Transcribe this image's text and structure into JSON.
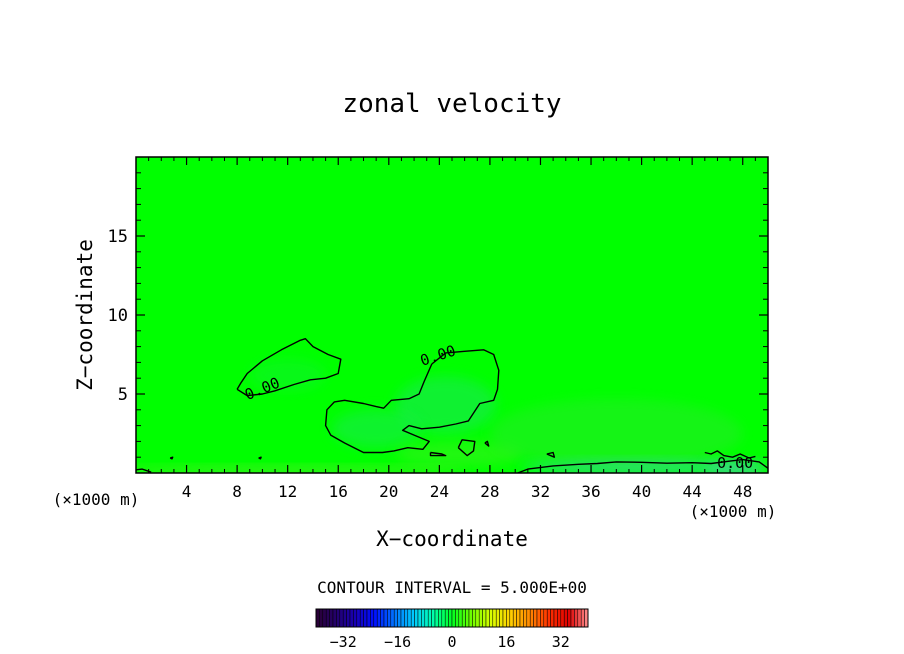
{
  "chart_data": {
    "type": "heatmap",
    "title": "zonal velocity",
    "xlabel": "X−coordinate",
    "ylabel": "Z−coordinate",
    "x_unit_left": "(×1000 m)",
    "x_unit_right": "(×1000 m)",
    "xlim": [
      0,
      50
    ],
    "ylim": [
      0,
      20
    ],
    "x_ticks": [
      {
        "value": 4,
        "label": "4"
      },
      {
        "value": 8,
        "label": "8"
      },
      {
        "value": 12,
        "label": "12"
      },
      {
        "value": 16,
        "label": "16"
      },
      {
        "value": 20,
        "label": "20"
      },
      {
        "value": 24,
        "label": "24"
      },
      {
        "value": 28,
        "label": "28"
      },
      {
        "value": 32,
        "label": "32"
      },
      {
        "value": 36,
        "label": "36"
      },
      {
        "value": 40,
        "label": "40"
      },
      {
        "value": 44,
        "label": "44"
      },
      {
        "value": 48,
        "label": "48"
      }
    ],
    "y_ticks": [
      {
        "value": 5,
        "label": "5"
      },
      {
        "value": 10,
        "label": "10"
      },
      {
        "value": 15,
        "label": "15"
      }
    ],
    "background_color": "#00ff00",
    "contour_interval_text": "CONTOUR INTERVAL = 5.000E+00",
    "contour_label": "0.00",
    "contour_labels": [
      {
        "x": 10.0,
        "z": 5.3,
        "text": "0.00",
        "angle": -22
      },
      {
        "x": 23.9,
        "z": 7.4,
        "text": "0.00",
        "angle": -18
      },
      {
        "x": 47.4,
        "z": 0.6,
        "text": "0.00",
        "angle": 0
      }
    ],
    "zero_contours": [
      [
        [
          8,
          5.3
        ],
        [
          8.3,
          5.7
        ],
        [
          8.8,
          6.3
        ],
        [
          10,
          7.1
        ],
        [
          11.5,
          7.8
        ],
        [
          13,
          8.4
        ],
        [
          13.4,
          8.5
        ],
        [
          14,
          8.0
        ],
        [
          15.2,
          7.5
        ],
        [
          16.2,
          7.2
        ],
        [
          16,
          6.3
        ],
        [
          15,
          6.0
        ],
        [
          13.8,
          5.9
        ],
        [
          12.5,
          5.6
        ],
        [
          11,
          5.2
        ],
        [
          10,
          5.0
        ],
        [
          8.8,
          4.9
        ],
        [
          8,
          5.3
        ]
      ],
      [
        [
          23.4,
          6.9
        ],
        [
          24.5,
          7.6
        ],
        [
          26,
          7.7
        ],
        [
          27.5,
          7.8
        ],
        [
          28.3,
          7.5
        ],
        [
          28.7,
          6.5
        ],
        [
          28.6,
          5.3
        ],
        [
          28.3,
          4.6
        ],
        [
          27.2,
          4.4
        ],
        [
          26.3,
          3.3
        ],
        [
          25.3,
          3.1
        ],
        [
          24,
          2.9
        ],
        [
          22.6,
          2.8
        ],
        [
          21.6,
          3.0
        ],
        [
          21.1,
          2.7
        ],
        [
          22,
          2.4
        ],
        [
          23.2,
          2.0
        ],
        [
          22.7,
          1.5
        ],
        [
          21.5,
          1.6
        ],
        [
          20.4,
          1.4
        ],
        [
          19.5,
          1.3
        ],
        [
          18,
          1.3
        ],
        [
          16.5,
          1.9
        ],
        [
          15.4,
          2.4
        ],
        [
          15,
          3.0
        ],
        [
          15.1,
          4.0
        ],
        [
          15.7,
          4.5
        ],
        [
          16.5,
          4.6
        ],
        [
          18,
          4.4
        ],
        [
          19,
          4.2
        ],
        [
          19.6,
          4.1
        ],
        [
          20.2,
          4.6
        ],
        [
          21.6,
          4.7
        ],
        [
          22.4,
          5.0
        ],
        [
          22.8,
          5.8
        ],
        [
          23.4,
          6.9
        ]
      ],
      [
        [
          25.5,
          1.6
        ],
        [
          25.8,
          2.1
        ],
        [
          26.8,
          2.0
        ],
        [
          26.7,
          1.4
        ],
        [
          26.2,
          1.1
        ],
        [
          25.5,
          1.6
        ]
      ],
      [
        [
          23.3,
          1.3
        ],
        [
          24.2,
          1.2
        ],
        [
          24.5,
          1.1
        ],
        [
          23.3,
          1.1
        ],
        [
          23.3,
          1.3
        ]
      ],
      [
        [
          30.2,
          0.0
        ],
        [
          31,
          0.25
        ],
        [
          33,
          0.45
        ],
        [
          35,
          0.55
        ],
        [
          36.5,
          0.6
        ],
        [
          38,
          0.7
        ],
        [
          40,
          0.68
        ],
        [
          42,
          0.62
        ],
        [
          44,
          0.65
        ],
        [
          45.5,
          0.6
        ],
        [
          47,
          0.75
        ],
        [
          48,
          0.85
        ],
        [
          49.3,
          0.7
        ],
        [
          50,
          0.3
        ]
      ],
      [
        [
          32.5,
          1.2
        ],
        [
          33,
          1.3
        ],
        [
          33.1,
          1.0
        ],
        [
          32.5,
          1.2
        ]
      ],
      [
        [
          0,
          0.2
        ],
        [
          0.5,
          0.25
        ],
        [
          1.2,
          0.05
        ]
      ],
      [
        [
          2.7,
          0.95
        ],
        [
          2.9,
          1.0
        ],
        [
          2.85,
          0.9
        ],
        [
          2.7,
          0.95
        ]
      ],
      [
        [
          9.7,
          0.95
        ],
        [
          9.9,
          1.0
        ],
        [
          9.85,
          0.9
        ],
        [
          9.7,
          0.95
        ]
      ],
      [
        [
          27.6,
          1.9
        ],
        [
          27.8,
          2.0
        ],
        [
          27.9,
          1.7
        ],
        [
          27.6,
          1.9
        ]
      ],
      [
        [
          45,
          1.3
        ],
        [
          45.5,
          1.2
        ],
        [
          46,
          1.4
        ],
        [
          46.5,
          1.1
        ],
        [
          47.2,
          1.0
        ],
        [
          47.8,
          1.2
        ],
        [
          48.5,
          0.95
        ],
        [
          49,
          1.05
        ]
      ]
    ],
    "anomalies": [
      {
        "x": 24.5,
        "z": 4.3,
        "rx": 4.0,
        "rz": 1.8,
        "color": "#1ee65a",
        "opacity": 0.55
      },
      {
        "x": 19.0,
        "z": 2.8,
        "rx": 3.5,
        "rz": 1.2,
        "color": "#1ee65a",
        "opacity": 0.5
      },
      {
        "x": 12.0,
        "z": 6.2,
        "rx": 3.0,
        "rz": 1.0,
        "color": "#17ee3c",
        "opacity": 0.4
      },
      {
        "x": 25.5,
        "z": 1.2,
        "rx": 5.0,
        "rz": 0.8,
        "color": "#5ee832",
        "opacity": 0.35
      },
      {
        "x": 38.0,
        "z": 2.5,
        "rx": 10.0,
        "rz": 2.2,
        "color": "#3ee040",
        "opacity": 0.35
      },
      {
        "x": 40.0,
        "z": 0.35,
        "rx": 9.5,
        "rz": 0.4,
        "color": "#3ad2a0",
        "opacity": 0.7
      },
      {
        "x": 47.5,
        "z": 0.3,
        "rx": 2.5,
        "rz": 0.4,
        "color": "#55c8b8",
        "opacity": 0.6
      },
      {
        "x": 12.0,
        "z": 0.15,
        "rx": 14.0,
        "rz": 0.25,
        "color": "#7ae23a",
        "opacity": 0.55
      }
    ],
    "colorbar": {
      "min": -40,
      "max": 40,
      "step": 1,
      "ticks": [
        {
          "value": -32,
          "label": "−32"
        },
        {
          "value": -16,
          "label": "−16"
        },
        {
          "value": 0,
          "label": "0"
        },
        {
          "value": 16,
          "label": "16"
        },
        {
          "value": 32,
          "label": "32"
        }
      ],
      "colors": [
        "#2a0033",
        "#24006a",
        "#1800b4",
        "#0010ff",
        "#0070ff",
        "#00c8ff",
        "#00ffb0",
        "#00ff20",
        "#70ff00",
        "#d8ff00",
        "#ffd000",
        "#ff8800",
        "#ff3000",
        "#e00000",
        "#ff9090"
      ]
    }
  }
}
